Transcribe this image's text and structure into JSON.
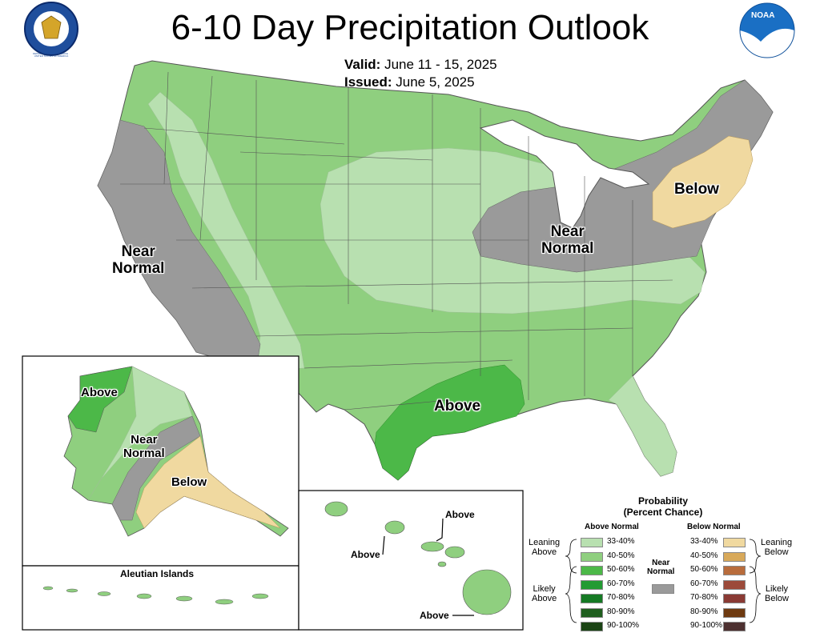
{
  "header": {
    "title": "6-10 Day Precipitation Outlook",
    "valid_label": "Valid:",
    "valid_dates": "June 11 - 15, 2025",
    "issued_label": "Issued:",
    "issued_date": "June 5, 2025"
  },
  "logos": {
    "left": "Department of Commerce seal",
    "right": "NOAA",
    "left_seal_text": "DEPARTMENT OF COMMERCE · UNITED STATES OF AMERICA"
  },
  "regions": {
    "near_normal_west": "Near\nNormal",
    "near_normal_east": "Near\nNormal",
    "below_northeast": "Below",
    "above_gulf": "Above",
    "ak_above": "Above",
    "ak_near_normal": "Near\nNormal",
    "ak_below": "Below",
    "aleutians": "Aleutian Islands",
    "hi_above_1": "Above",
    "hi_above_2": "Above",
    "hi_above_3": "Above"
  },
  "legend": {
    "title": "Probability\n(Percent Chance)",
    "above_header": "Above Normal",
    "below_header": "Below Normal",
    "near_normal": "Near\nNormal",
    "leaning_above": "Leaning\nAbove",
    "likely_above": "Likely\nAbove",
    "leaning_below": "Leaning\nBelow",
    "likely_below": "Likely\nBelow",
    "above_bins": [
      {
        "label": "33-40%",
        "color": "#b8e0b0"
      },
      {
        "label": "40-50%",
        "color": "#8fcf7f"
      },
      {
        "label": "50-60%",
        "color": "#4cb848"
      },
      {
        "label": "60-70%",
        "color": "#239b33"
      },
      {
        "label": "70-80%",
        "color": "#157a24"
      },
      {
        "label": "80-90%",
        "color": "#1f5e1e"
      },
      {
        "label": "90-100%",
        "color": "#1b4415"
      }
    ],
    "below_bins": [
      {
        "label": "33-40%",
        "color": "#f0d9a0"
      },
      {
        "label": "40-50%",
        "color": "#d8a95a"
      },
      {
        "label": "50-60%",
        "color": "#b86c3c"
      },
      {
        "label": "60-70%",
        "color": "#9c4a3a"
      },
      {
        "label": "70-80%",
        "color": "#8a3a34"
      },
      {
        "label": "80-90%",
        "color": "#6e3a10"
      },
      {
        "label": "90-100%",
        "color": "#4d3030"
      }
    ],
    "near_color": "#9a9a9a"
  }
}
